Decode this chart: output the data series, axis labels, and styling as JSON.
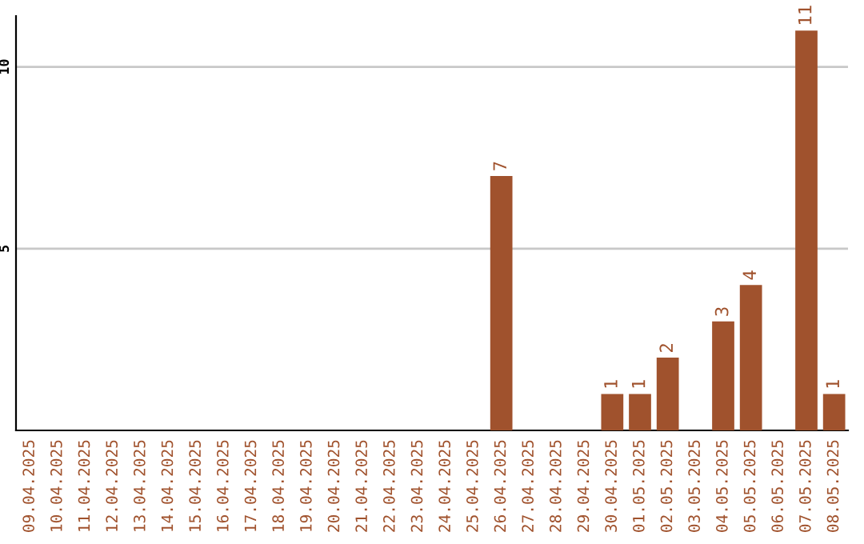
{
  "chart_data": {
    "type": "bar",
    "categories": [
      "09.04.2025",
      "10.04.2025",
      "11.04.2025",
      "12.04.2025",
      "13.04.2025",
      "14.04.2025",
      "15.04.2025",
      "16.04.2025",
      "17.04.2025",
      "18.04.2025",
      "19.04.2025",
      "20.04.2025",
      "21.04.2025",
      "22.04.2025",
      "23.04.2025",
      "24.04.2025",
      "25.04.2025",
      "26.04.2025",
      "27.04.2025",
      "28.04.2025",
      "29.04.2025",
      "30.04.2025",
      "01.05.2025",
      "02.05.2025",
      "03.05.2025",
      "04.05.2025",
      "05.05.2025",
      "06.05.2025",
      "07.05.2025",
      "08.05.2025"
    ],
    "values": [
      0,
      0,
      0,
      0,
      0,
      0,
      0,
      0,
      0,
      0,
      0,
      0,
      0,
      0,
      0,
      0,
      0,
      7,
      0,
      0,
      0,
      1,
      1,
      2,
      0,
      3,
      4,
      0,
      11,
      1
    ],
    "value_labels": [
      null,
      null,
      null,
      null,
      null,
      null,
      null,
      null,
      null,
      null,
      null,
      null,
      null,
      null,
      null,
      null,
      null,
      "7",
      null,
      null,
      null,
      "1",
      "1",
      "2",
      null,
      "3",
      "4",
      null,
      "11",
      "1"
    ],
    "color": "#a0522d",
    "ylim": [
      0,
      11.4
    ],
    "yticks": [
      5,
      10
    ],
    "grid": "y"
  }
}
